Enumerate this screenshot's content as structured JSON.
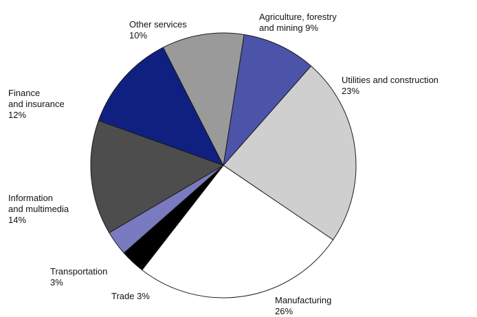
{
  "chart_data": {
    "type": "pie",
    "title": "",
    "slices": [
      {
        "label": "Agriculture, forestry and mining",
        "value": 9,
        "color": "#4b54a8"
      },
      {
        "label": "Utilities and construction",
        "value": 23,
        "color": "#cfcfcf"
      },
      {
        "label": "Manufacturing",
        "value": 26,
        "color": "#ffffff"
      },
      {
        "label": "Trade",
        "value": 3,
        "color": "#000000"
      },
      {
        "label": "Transportation",
        "value": 3,
        "color": "#7a7ac0"
      },
      {
        "label": "Information and multimedia",
        "value": 14,
        "color": "#4d4d4d"
      },
      {
        "label": "Finance and insurance",
        "value": 12,
        "color": "#102080"
      },
      {
        "label": "Other services",
        "value": 10,
        "color": "#9a9a9a"
      }
    ]
  },
  "labels": {
    "other": {
      "line1": "Other services",
      "line2": "10%"
    },
    "agri": {
      "line1": "Agriculture, forestry",
      "line2": "and mining 9%"
    },
    "util": {
      "line1": "Utilities and construction",
      "line2": "23%"
    },
    "fin": {
      "line1": "Finance",
      "line2": "and insurance",
      "line3": "12%"
    },
    "info": {
      "line1": "Information",
      "line2": "and multimedia",
      "line3": "14%"
    },
    "trans": {
      "line1": "Transportation",
      "line2": "3%"
    },
    "trade": {
      "line1": "Trade 3%"
    },
    "manu": {
      "line1": "Manufacturing",
      "line2": "26%"
    }
  }
}
